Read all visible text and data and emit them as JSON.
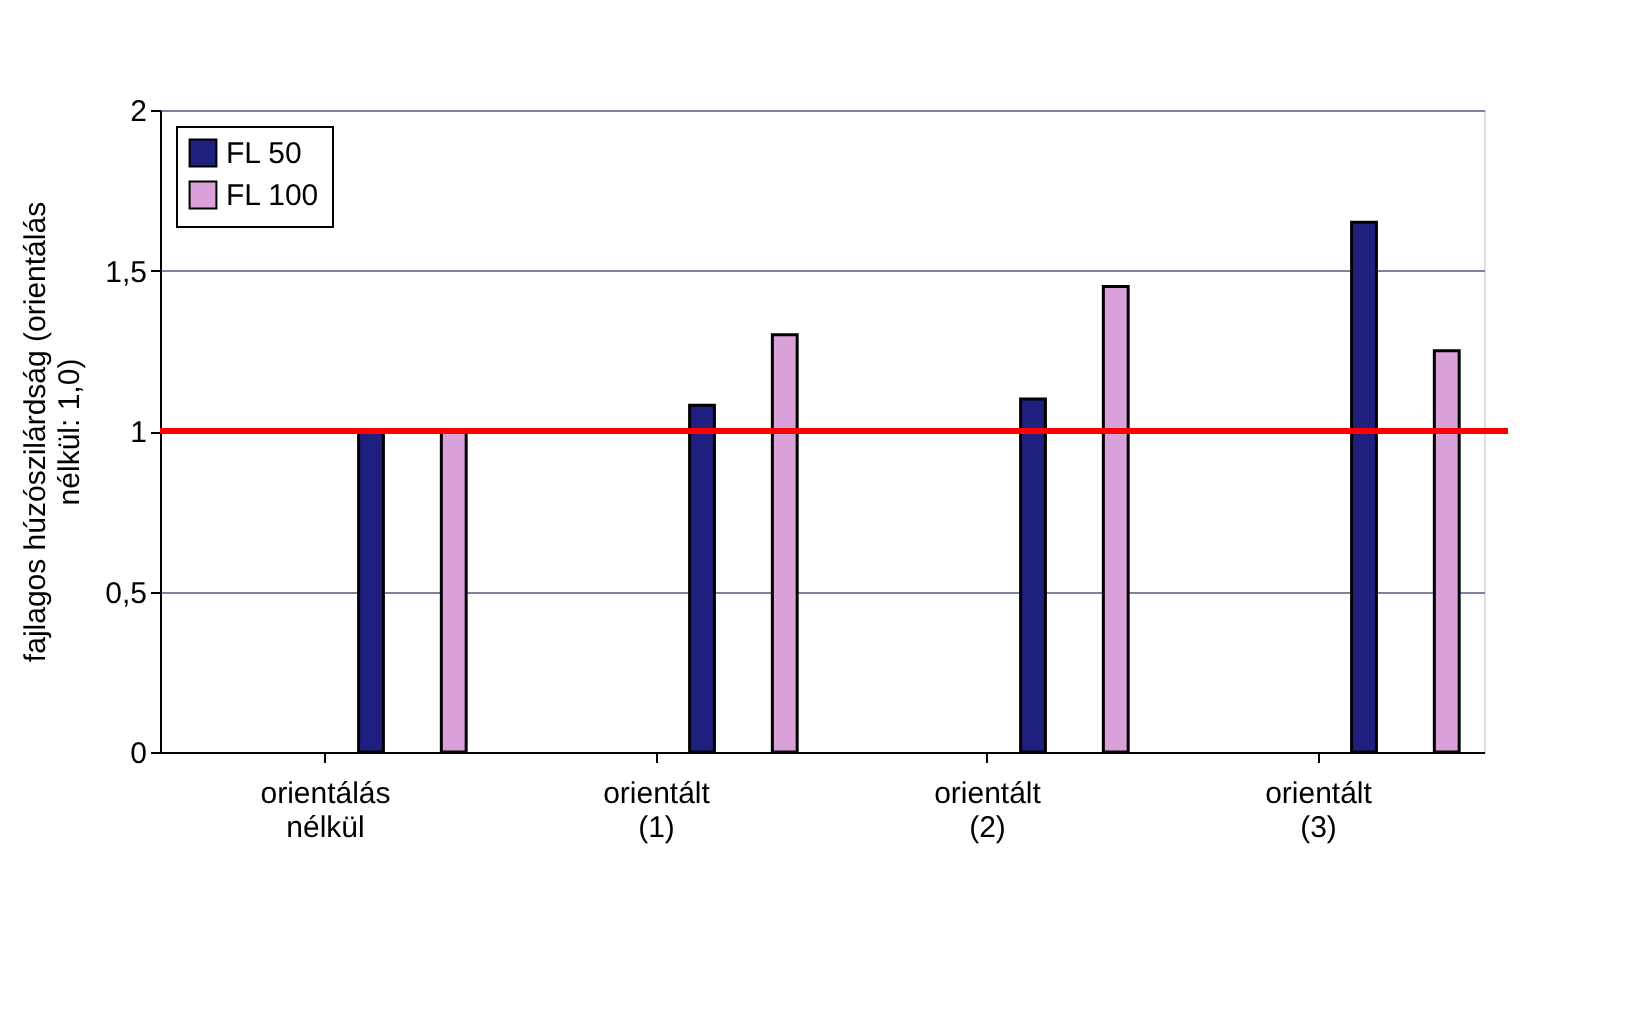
{
  "chart_data": {
    "type": "bar",
    "ylabel": "fajlagos húzószilárdság (orientálás nélkül: 1,0)",
    "categories": [
      "orientálás nélkül",
      "orientált (1)",
      "orientált (2)",
      "orientált (3)"
    ],
    "series": [
      {
        "name": "FL 50",
        "color": "#1f1f80",
        "values": [
          1.0,
          1.08,
          1.1,
          1.65
        ]
      },
      {
        "name": "FL 100",
        "color": "#d9a0d9",
        "values": [
          1.0,
          1.3,
          1.45,
          1.25
        ]
      }
    ],
    "ylim": [
      0,
      2
    ],
    "yticks": [
      0,
      {
        "value": 0.5,
        "label": "0,5"
      },
      1,
      {
        "value": 1.5,
        "label": "1,5"
      },
      2
    ],
    "grid": "y",
    "legend": "top left",
    "ref_lines": [
      {
        "axis": "y",
        "value": 1,
        "color": "#ff0000"
      }
    ]
  }
}
